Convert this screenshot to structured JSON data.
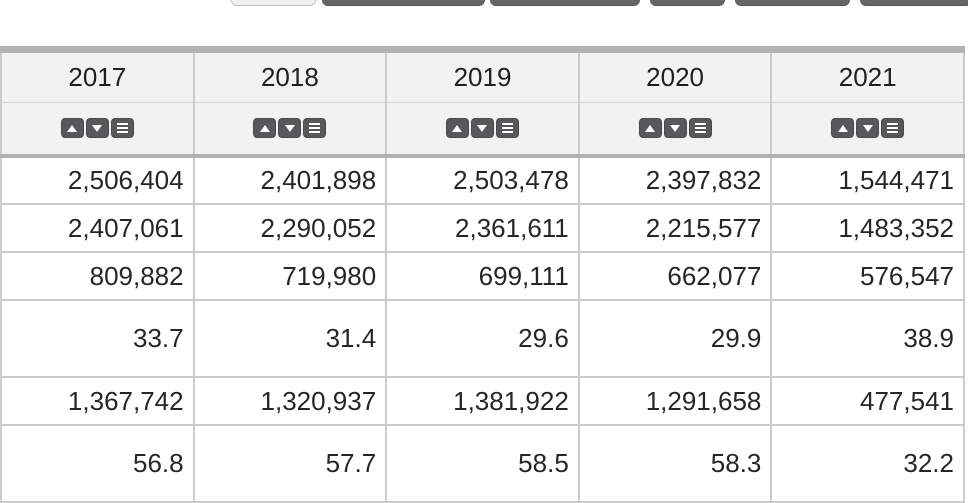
{
  "toolbar": {
    "buttons": [
      {
        "variant": "light"
      },
      {
        "variant": "dark"
      },
      {
        "variant": "dark"
      },
      {
        "variant": "dark"
      },
      {
        "variant": "dark"
      },
      {
        "variant": "dark"
      }
    ]
  },
  "table": {
    "columns": [
      "2017",
      "2018",
      "2019",
      "2020",
      "2021"
    ],
    "sort_controls": [
      "sort-ascending",
      "sort-descending",
      "column-menu"
    ],
    "rows": [
      [
        "2,506,404",
        "2,401,898",
        "2,503,478",
        "2,397,832",
        "1,544,471"
      ],
      [
        "2,407,061",
        "2,290,052",
        "2,361,611",
        "2,215,577",
        "1,483,352"
      ],
      [
        "809,882",
        "719,980",
        "699,111",
        "662,077",
        "576,547"
      ],
      [
        "33.7",
        "31.4",
        "29.6",
        "29.9",
        "38.9"
      ],
      [
        "1,367,742",
        "1,320,937",
        "1,381,922",
        "1,291,658",
        "477,541"
      ],
      [
        "56.8",
        "57.7",
        "58.5",
        "58.3",
        "32.2"
      ]
    ],
    "tall_row_indexes": [
      3,
      5
    ],
    "colors": {
      "header_bg": "#f2f2f2",
      "border_light": "#cbcbcb",
      "border_heavy": "#b1b1b1",
      "sort_button_bg": "#58585a",
      "toolbar_dark_button": "#666666",
      "toolbar_light_button": "#f0f0f0",
      "text": "#262626"
    }
  }
}
